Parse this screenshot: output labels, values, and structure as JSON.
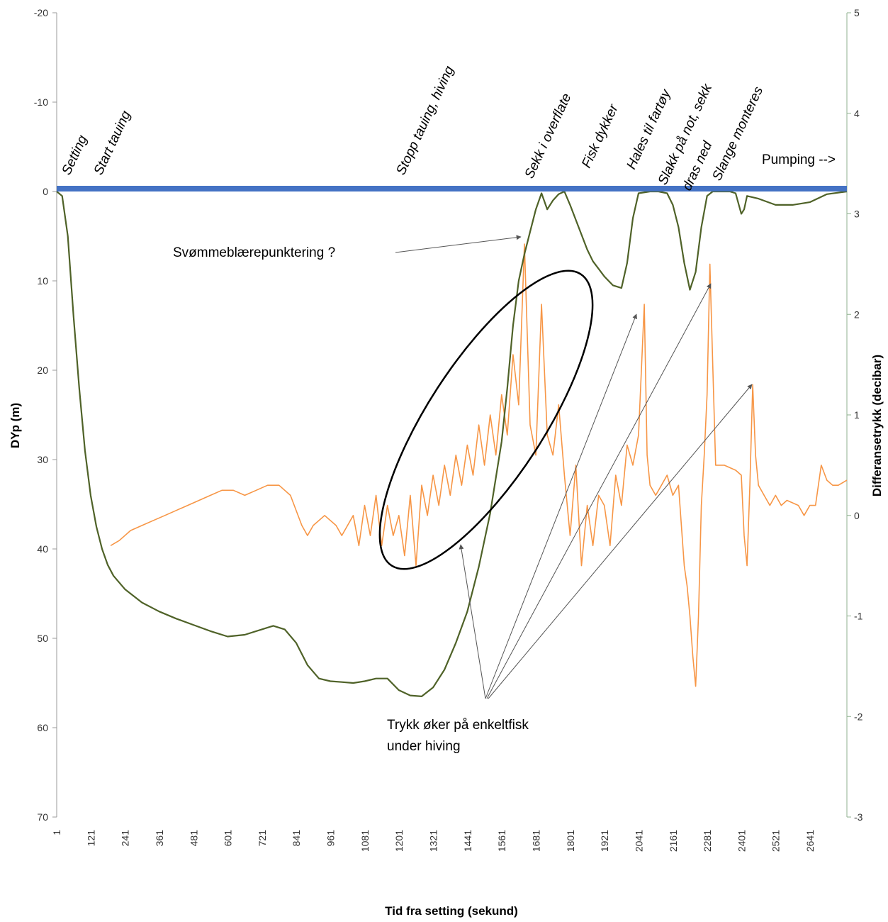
{
  "chart_data": {
    "type": "line",
    "xlabel": "Tid  fra setting (sekund)",
    "ylabel_left": "DYp (m)",
    "ylabel_right": "Differansetrykk (decibar)",
    "x_ticks": [
      "1",
      "121",
      "241",
      "361",
      "481",
      "601",
      "721",
      "841",
      "961",
      "1081",
      "1201",
      "1321",
      "1441",
      "1561",
      "1681",
      "1801",
      "1921",
      "2041",
      "2161",
      "2281",
      "2401",
      "2521",
      "2641"
    ],
    "y_left_ticks": [
      -20,
      -10,
      0,
      10,
      20,
      30,
      40,
      50,
      60,
      70
    ],
    "y_right_ticks": [
      5,
      4,
      3,
      2,
      1,
      0,
      -1,
      -2,
      -3
    ],
    "ylim_left": [
      -20,
      70
    ],
    "ylim_right": [
      -3,
      5
    ],
    "xlim": [
      1,
      2770
    ],
    "left_axis_reversed": true,
    "grid": false,
    "series": [
      {
        "axis": "left",
        "color": "#4f6228",
        "points": [
          [
            1,
            0
          ],
          [
            20,
            0.5
          ],
          [
            40,
            5
          ],
          [
            60,
            14
          ],
          [
            80,
            22
          ],
          [
            100,
            29
          ],
          [
            120,
            34
          ],
          [
            140,
            37.5
          ],
          [
            160,
            40
          ],
          [
            180,
            41.8
          ],
          [
            200,
            43
          ],
          [
            240,
            44.5
          ],
          [
            300,
            46
          ],
          [
            360,
            47
          ],
          [
            420,
            47.8
          ],
          [
            480,
            48.5
          ],
          [
            540,
            49.2
          ],
          [
            600,
            49.8
          ],
          [
            660,
            49.6
          ],
          [
            720,
            49
          ],
          [
            760,
            48.6
          ],
          [
            800,
            49
          ],
          [
            840,
            50.5
          ],
          [
            880,
            53
          ],
          [
            920,
            54.5
          ],
          [
            960,
            54.8
          ],
          [
            1000,
            54.9
          ],
          [
            1040,
            55
          ],
          [
            1080,
            54.8
          ],
          [
            1120,
            54.5
          ],
          [
            1160,
            54.5
          ],
          [
            1200,
            55.8
          ],
          [
            1240,
            56.4
          ],
          [
            1280,
            56.5
          ],
          [
            1320,
            55.5
          ],
          [
            1360,
            53.5
          ],
          [
            1400,
            50.5
          ],
          [
            1440,
            47
          ],
          [
            1480,
            42
          ],
          [
            1520,
            36
          ],
          [
            1560,
            28
          ],
          [
            1580,
            22
          ],
          [
            1600,
            15
          ],
          [
            1620,
            10
          ],
          [
            1640,
            7
          ],
          [
            1660,
            4.5
          ],
          [
            1680,
            2
          ],
          [
            1700,
            0.2
          ],
          [
            1720,
            2
          ],
          [
            1740,
            1
          ],
          [
            1760,
            0.3
          ],
          [
            1780,
            0
          ],
          [
            1800,
            1.5
          ],
          [
            1830,
            4
          ],
          [
            1860,
            6.5
          ],
          [
            1880,
            7.8
          ],
          [
            1920,
            9.5
          ],
          [
            1950,
            10.5
          ],
          [
            1980,
            10.8
          ],
          [
            2000,
            8
          ],
          [
            2020,
            3
          ],
          [
            2040,
            0.2
          ],
          [
            2080,
            0
          ],
          [
            2110,
            0
          ],
          [
            2140,
            0.2
          ],
          [
            2160,
            1.5
          ],
          [
            2180,
            4
          ],
          [
            2200,
            8
          ],
          [
            2220,
            11
          ],
          [
            2240,
            9
          ],
          [
            2260,
            4
          ],
          [
            2280,
            0.5
          ],
          [
            2300,
            0
          ],
          [
            2360,
            0
          ],
          [
            2380,
            0.2
          ],
          [
            2400,
            2.5
          ],
          [
            2410,
            2
          ],
          [
            2420,
            0.5
          ],
          [
            2460,
            0.8
          ],
          [
            2520,
            1.5
          ],
          [
            2580,
            1.5
          ],
          [
            2640,
            1.2
          ],
          [
            2700,
            0.3
          ],
          [
            2770,
            0
          ]
        ]
      },
      {
        "axis": "right",
        "color": "#f79646",
        "points": [
          [
            190,
            -0.3
          ],
          [
            220,
            -0.25
          ],
          [
            260,
            -0.15
          ],
          [
            300,
            -0.1
          ],
          [
            340,
            -0.05
          ],
          [
            380,
            0
          ],
          [
            420,
            0.05
          ],
          [
            460,
            0.1
          ],
          [
            500,
            0.15
          ],
          [
            540,
            0.2
          ],
          [
            580,
            0.25
          ],
          [
            620,
            0.25
          ],
          [
            660,
            0.2
          ],
          [
            700,
            0.25
          ],
          [
            740,
            0.3
          ],
          [
            780,
            0.3
          ],
          [
            820,
            0.2
          ],
          [
            860,
            -0.1
          ],
          [
            880,
            -0.2
          ],
          [
            900,
            -0.1
          ],
          [
            940,
            0
          ],
          [
            980,
            -0.1
          ],
          [
            1000,
            -0.2
          ],
          [
            1040,
            0
          ],
          [
            1060,
            -0.3
          ],
          [
            1080,
            0.1
          ],
          [
            1100,
            -0.2
          ],
          [
            1120,
            0.2
          ],
          [
            1140,
            -0.3
          ],
          [
            1160,
            0.1
          ],
          [
            1180,
            -0.2
          ],
          [
            1200,
            0
          ],
          [
            1220,
            -0.4
          ],
          [
            1240,
            0.2
          ],
          [
            1260,
            -0.5
          ],
          [
            1280,
            0.3
          ],
          [
            1300,
            0
          ],
          [
            1320,
            0.4
          ],
          [
            1340,
            0.1
          ],
          [
            1360,
            0.5
          ],
          [
            1380,
            0.2
          ],
          [
            1400,
            0.6
          ],
          [
            1420,
            0.3
          ],
          [
            1440,
            0.7
          ],
          [
            1460,
            0.4
          ],
          [
            1480,
            0.9
          ],
          [
            1500,
            0.5
          ],
          [
            1520,
            1
          ],
          [
            1540,
            0.6
          ],
          [
            1560,
            1.2
          ],
          [
            1580,
            0.8
          ],
          [
            1600,
            1.6
          ],
          [
            1620,
            1.1
          ],
          [
            1640,
            2.7
          ],
          [
            1660,
            0.9
          ],
          [
            1680,
            0.6
          ],
          [
            1700,
            2.1
          ],
          [
            1720,
            0.8
          ],
          [
            1740,
            0.6
          ],
          [
            1760,
            1.1
          ],
          [
            1780,
            0.4
          ],
          [
            1800,
            -0.2
          ],
          [
            1820,
            0.5
          ],
          [
            1840,
            -0.5
          ],
          [
            1860,
            0.1
          ],
          [
            1880,
            -0.3
          ],
          [
            1900,
            0.2
          ],
          [
            1920,
            0.1
          ],
          [
            1940,
            -0.3
          ],
          [
            1960,
            0.4
          ],
          [
            1980,
            0.1
          ],
          [
            2000,
            0.7
          ],
          [
            2020,
            0.5
          ],
          [
            2040,
            0.8
          ],
          [
            2060,
            2.1
          ],
          [
            2070,
            0.6
          ],
          [
            2080,
            0.3
          ],
          [
            2100,
            0.2
          ],
          [
            2120,
            0.3
          ],
          [
            2140,
            0.4
          ],
          [
            2160,
            0.2
          ],
          [
            2180,
            0.3
          ],
          [
            2200,
            -0.5
          ],
          [
            2210,
            -0.7
          ],
          [
            2220,
            -1
          ],
          [
            2230,
            -1.4
          ],
          [
            2240,
            -1.7
          ],
          [
            2250,
            -1
          ],
          [
            2260,
            0.1
          ],
          [
            2270,
            0.6
          ],
          [
            2280,
            1.2
          ],
          [
            2290,
            2.5
          ],
          [
            2300,
            1.5
          ],
          [
            2310,
            0.5
          ],
          [
            2340,
            0.5
          ],
          [
            2380,
            0.45
          ],
          [
            2400,
            0.4
          ],
          [
            2410,
            -0.2
          ],
          [
            2420,
            -0.5
          ],
          [
            2430,
            0.3
          ],
          [
            2440,
            1.3
          ],
          [
            2450,
            0.6
          ],
          [
            2460,
            0.3
          ],
          [
            2480,
            0.2
          ],
          [
            2500,
            0.1
          ],
          [
            2520,
            0.2
          ],
          [
            2540,
            0.1
          ],
          [
            2560,
            0.15
          ],
          [
            2600,
            0.1
          ],
          [
            2620,
            0
          ],
          [
            2640,
            0.1
          ],
          [
            2660,
            0.1
          ],
          [
            2680,
            0.5
          ],
          [
            2700,
            0.35
          ],
          [
            2720,
            0.3
          ],
          [
            2740,
            0.3
          ],
          [
            2770,
            0.35
          ]
        ]
      },
      {
        "axis": "left",
        "color": "#4472c4",
        "points": [
          [
            1,
            0
          ],
          [
            2770,
            0
          ]
        ]
      }
    ],
    "events": [
      {
        "label": "Setting",
        "x": 1
      },
      {
        "label": "Start tauing",
        "x": 170
      },
      {
        "label": "Stopp tauing, hiving",
        "x": 1230
      },
      {
        "label": "Sekk i overflate",
        "x": 1680
      },
      {
        "label": "Fisk dykker",
        "x": 1880
      },
      {
        "label": "Hales til fartøy",
        "x": 2040
      },
      {
        "label": "Slakk på not, sekk",
        "x": 2150
      },
      {
        "label": "dras ned",
        "x": 2230
      },
      {
        "label": "Slange monteres",
        "x": 2340
      }
    ],
    "annotations": {
      "pumping": "Pumping -->",
      "swimbladder": "Svømmeblærepunktering ?",
      "pressure_line1": "Trykk øker på enkeltfisk",
      "pressure_line2": "under hiving"
    }
  }
}
